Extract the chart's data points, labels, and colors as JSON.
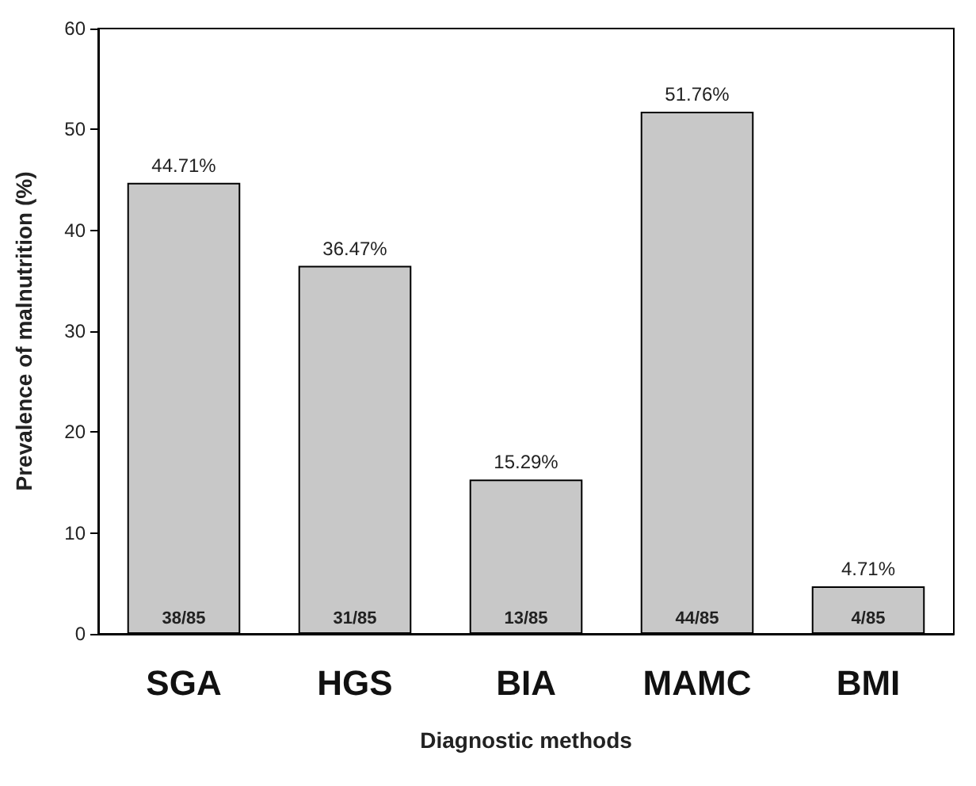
{
  "chart_data": {
    "type": "bar",
    "xlabel": "Diagnostic methods",
    "ylabel": "Prevalence of malnutrition (%)",
    "categories": [
      "SGA",
      "HGS",
      "BIA",
      "MAMC",
      "BMI"
    ],
    "values": [
      44.71,
      36.47,
      15.29,
      51.76,
      4.71
    ],
    "value_labels": [
      "44.71%",
      "36.47%",
      "15.29%",
      "51.76%",
      "4.71%"
    ],
    "color": "#c8c8c8",
    "ylim": [
      0,
      60
    ],
    "yticks": [
      0,
      10,
      20,
      30,
      40,
      50,
      60
    ],
    "grid": false,
    "annotations": [
      {
        "text": "38/85",
        "x": "SGA",
        "y": 0
      },
      {
        "text": "31/85",
        "x": "HGS",
        "y": 0
      },
      {
        "text": "13/85",
        "x": "BIA",
        "y": 0
      },
      {
        "text": "44/85",
        "x": "MAMC",
        "y": 0
      },
      {
        "text": "4/85",
        "x": "BMI",
        "y": 0
      }
    ]
  }
}
